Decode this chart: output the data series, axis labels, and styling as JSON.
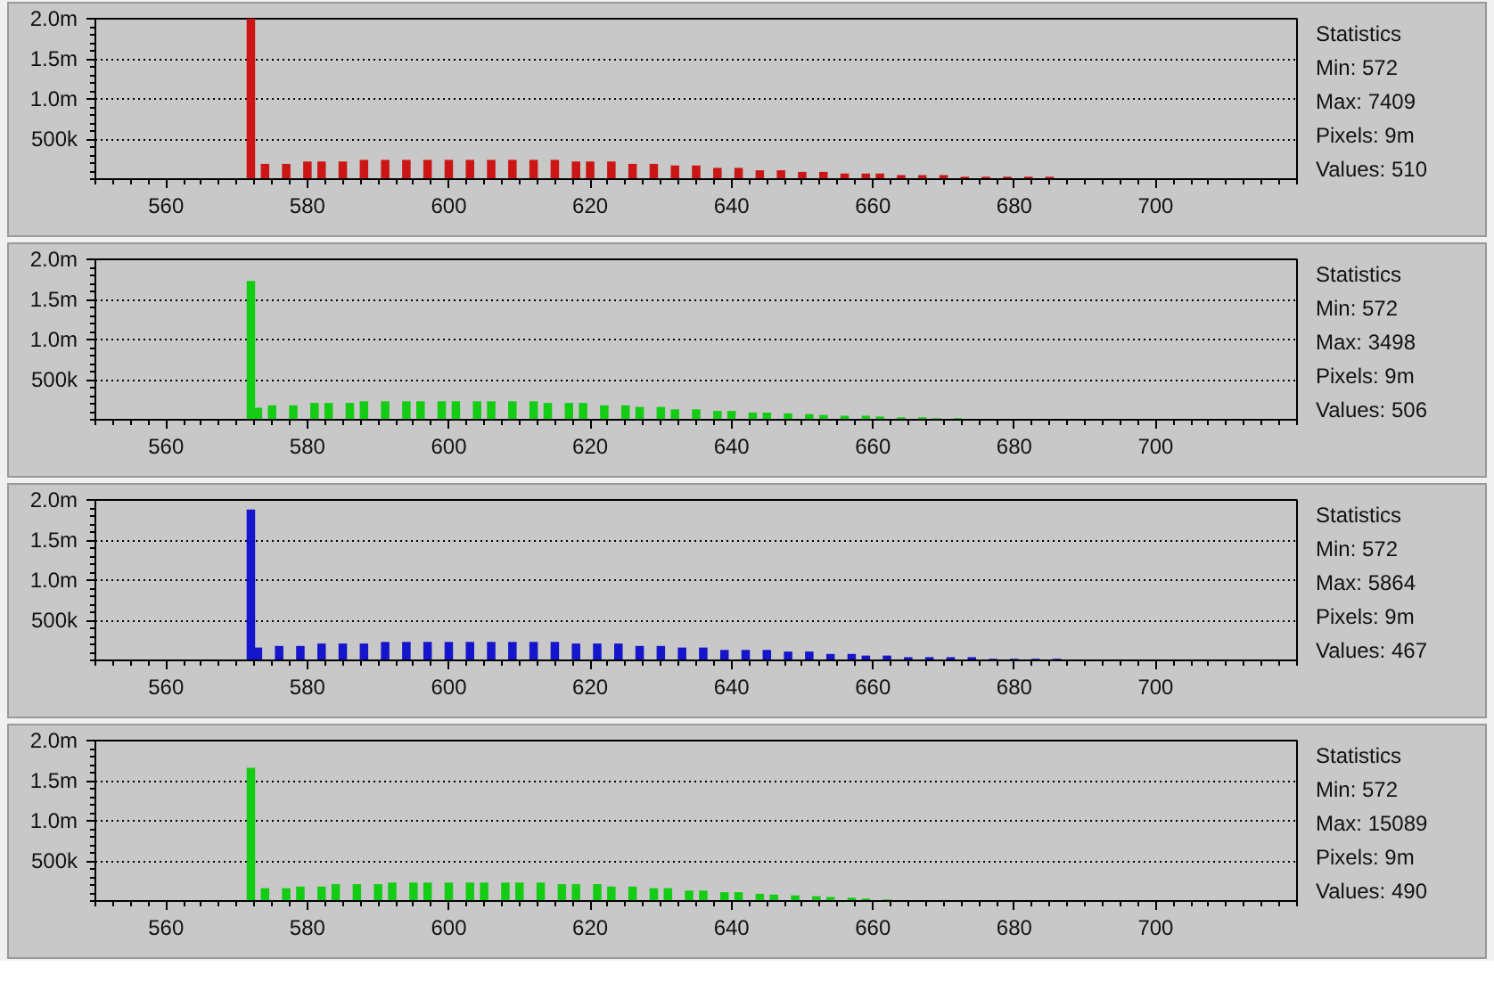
{
  "chart_data": [
    {
      "type": "bar",
      "color": "#cc1515",
      "xlim": [
        550,
        720
      ],
      "ylim": [
        0,
        2000000
      ],
      "xticks": [
        560,
        580,
        600,
        620,
        640,
        660,
        680,
        700
      ],
      "yticks": [
        {
          "value": 500000,
          "label": "500k"
        },
        {
          "value": 1000000,
          "label": "1.0m"
        },
        {
          "value": 1500000,
          "label": "1.5m"
        },
        {
          "value": 2000000,
          "label": "2.0m"
        }
      ],
      "grid": "y",
      "annotations": [
        "Statistics",
        "Min: 572",
        "Max: 7409",
        "Pixels: 9m",
        "Values: 510"
      ],
      "x": [
        572,
        574,
        577,
        580,
        582,
        585,
        588,
        591,
        594,
        597,
        600,
        603,
        606,
        609,
        612,
        615,
        618,
        620,
        623,
        626,
        629,
        632,
        635,
        638,
        641,
        644,
        647,
        650,
        653,
        656,
        659,
        661,
        664,
        667,
        670,
        673,
        676,
        679,
        682,
        685
      ],
      "values": [
        2000000,
        190000,
        190000,
        220000,
        220000,
        220000,
        240000,
        240000,
        240000,
        240000,
        240000,
        240000,
        240000,
        240000,
        240000,
        240000,
        220000,
        220000,
        220000,
        190000,
        190000,
        170000,
        170000,
        140000,
        140000,
        110000,
        110000,
        90000,
        90000,
        70000,
        70000,
        70000,
        50000,
        50000,
        50000,
        30000,
        30000,
        30000,
        30000,
        30000
      ]
    },
    {
      "type": "bar",
      "color": "#15cc15",
      "xlim": [
        550,
        720
      ],
      "ylim": [
        0,
        2000000
      ],
      "xticks": [
        560,
        580,
        600,
        620,
        640,
        660,
        680,
        700
      ],
      "yticks": [
        {
          "value": 500000,
          "label": "500k"
        },
        {
          "value": 1000000,
          "label": "1.0m"
        },
        {
          "value": 1500000,
          "label": "1.5m"
        },
        {
          "value": 2000000,
          "label": "2.0m"
        }
      ],
      "grid": "y",
      "annotations": [
        "Statistics",
        "Min: 572",
        "Max: 3498",
        "Pixels: 9m",
        "Values: 506"
      ],
      "x": [
        572,
        573,
        575,
        578,
        581,
        583,
        586,
        588,
        591,
        594,
        596,
        599,
        601,
        604,
        606,
        609,
        612,
        614,
        617,
        619,
        622,
        625,
        627,
        630,
        632,
        635,
        638,
        640,
        643,
        645,
        648,
        651,
        653,
        656,
        659,
        661,
        664,
        667,
        669,
        672
      ],
      "values": [
        1730000,
        150000,
        180000,
        180000,
        210000,
        210000,
        210000,
        230000,
        230000,
        230000,
        230000,
        230000,
        230000,
        230000,
        230000,
        230000,
        230000,
        210000,
        210000,
        210000,
        180000,
        180000,
        160000,
        160000,
        130000,
        130000,
        110000,
        110000,
        90000,
        90000,
        80000,
        70000,
        60000,
        50000,
        50000,
        40000,
        30000,
        30000,
        20000,
        20000
      ]
    },
    {
      "type": "bar",
      "color": "#1515cc",
      "xlim": [
        550,
        720
      ],
      "ylim": [
        0,
        2000000
      ],
      "xticks": [
        560,
        580,
        600,
        620,
        640,
        660,
        680,
        700
      ],
      "yticks": [
        {
          "value": 500000,
          "label": "500k"
        },
        {
          "value": 1000000,
          "label": "1.0m"
        },
        {
          "value": 1500000,
          "label": "1.5m"
        },
        {
          "value": 2000000,
          "label": "2.0m"
        }
      ],
      "grid": "y",
      "annotations": [
        "Statistics",
        "Min: 572",
        "Max: 5864",
        "Pixels: 9m",
        "Values: 467"
      ],
      "x": [
        572,
        573,
        576,
        579,
        582,
        585,
        588,
        591,
        594,
        597,
        600,
        603,
        606,
        609,
        612,
        615,
        618,
        621,
        624,
        627,
        630,
        633,
        636,
        639,
        642,
        645,
        648,
        651,
        654,
        657,
        659,
        662,
        665,
        668,
        671,
        674,
        677,
        680,
        683,
        686
      ],
      "values": [
        1880000,
        160000,
        180000,
        180000,
        210000,
        210000,
        210000,
        230000,
        230000,
        230000,
        230000,
        230000,
        230000,
        230000,
        230000,
        230000,
        210000,
        210000,
        210000,
        180000,
        180000,
        160000,
        160000,
        130000,
        130000,
        130000,
        110000,
        110000,
        80000,
        80000,
        60000,
        60000,
        40000,
        40000,
        40000,
        40000,
        20000,
        20000,
        20000,
        20000
      ]
    },
    {
      "type": "bar",
      "color": "#15cc15",
      "xlim": [
        550,
        720
      ],
      "ylim": [
        0,
        2000000
      ],
      "xticks": [
        560,
        580,
        600,
        620,
        640,
        660,
        680,
        700
      ],
      "yticks": [
        {
          "value": 500000,
          "label": "500k"
        },
        {
          "value": 1000000,
          "label": "1.0m"
        },
        {
          "value": 1500000,
          "label": "1.5m"
        },
        {
          "value": 2000000,
          "label": "2.0m"
        }
      ],
      "grid": "y",
      "annotations": [
        "Statistics",
        "Min: 572",
        "Max: 15089",
        "Pixels: 9m",
        "Values: 490"
      ],
      "x": [
        572,
        574,
        577,
        579,
        582,
        584,
        587,
        590,
        592,
        595,
        597,
        600,
        603,
        605,
        608,
        610,
        613,
        616,
        618,
        621,
        623,
        626,
        629,
        631,
        634,
        636,
        639,
        641,
        644,
        646,
        649,
        652,
        654,
        657,
        659,
        662
      ],
      "values": [
        1660000,
        160000,
        160000,
        180000,
        180000,
        210000,
        210000,
        210000,
        230000,
        230000,
        230000,
        230000,
        230000,
        230000,
        230000,
        230000,
        230000,
        210000,
        210000,
        210000,
        180000,
        180000,
        160000,
        160000,
        130000,
        130000,
        110000,
        110000,
        90000,
        80000,
        70000,
        60000,
        50000,
        40000,
        30000,
        20000
      ]
    }
  ]
}
